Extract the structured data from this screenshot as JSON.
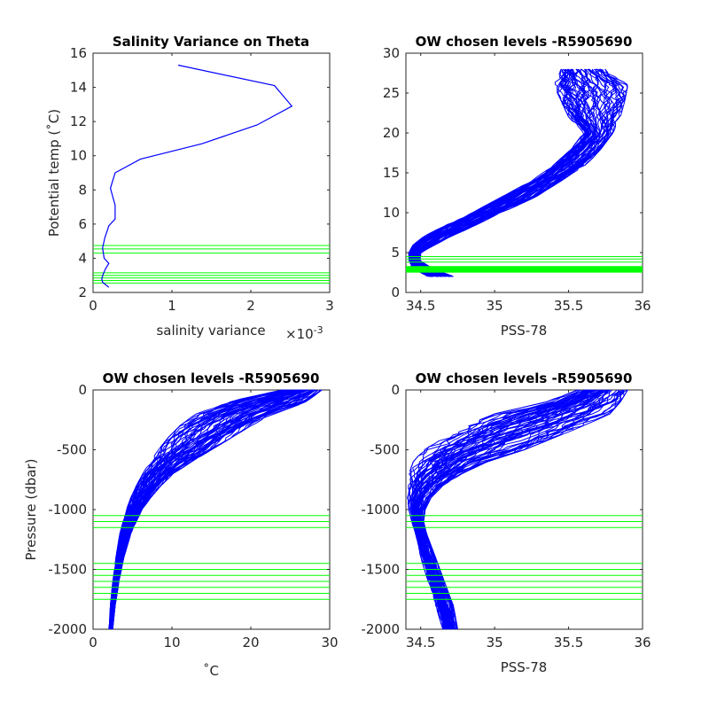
{
  "colors": {
    "profile": "#0000ff",
    "chosen_levels": "#00ff00",
    "axes": "#262626",
    "background": "#ffffff"
  },
  "chart_data": [
    {
      "type": "line",
      "title": "Salinity Variance on Theta",
      "xlabel": "salinity variance",
      "x_exponent": "×10",
      "x_exponent_power": "-3",
      "ylabel": "Potential temp (˚C)",
      "xlim": [
        0,
        0.003
      ],
      "ylim": [
        2,
        16
      ],
      "xticks": [
        0,
        0.001,
        0.002,
        0.003
      ],
      "xtick_labels": [
        "0",
        "1",
        "2",
        "3"
      ],
      "yticks": [
        2,
        4,
        6,
        8,
        10,
        12,
        14,
        16
      ],
      "ytick_labels": [
        "2",
        "4",
        "6",
        "8",
        "10",
        "12",
        "14",
        "16"
      ],
      "series": [
        {
          "x": [
            0.00108,
            0.0023,
            0.00252,
            0.00208,
            0.00138,
            0.0006,
            0.00028,
            0.00022,
            0.00028,
            0.00028,
            0.0002,
            0.00015,
            0.00012,
            0.00014,
            0.0002,
            0.00016,
            0.00013,
            0.00011,
            0.00012,
            0.0002
          ],
          "y": [
            15.3,
            14.1,
            12.9,
            11.8,
            10.7,
            9.8,
            9.0,
            8.1,
            7.1,
            6.3,
            5.9,
            5.2,
            4.6,
            4.0,
            3.7,
            3.4,
            3.1,
            2.8,
            2.6,
            2.3
          ]
        }
      ],
      "hlines": [
        4.75,
        4.55,
        4.3,
        3.15,
        3.0,
        2.85,
        2.7,
        2.55
      ]
    },
    {
      "type": "line",
      "title": "OW chosen levels -R5905690",
      "xlabel": "PSS-78",
      "ylabel": "",
      "xlim": [
        34.4,
        36
      ],
      "ylim": [
        0,
        30
      ],
      "xticks": [
        34.5,
        35,
        35.5,
        36
      ],
      "xtick_labels": [
        "34.5",
        "35",
        "35.5",
        "36"
      ],
      "yticks": [
        0,
        5,
        10,
        15,
        20,
        25,
        30
      ],
      "ytick_labels": [
        "0",
        "5",
        "10",
        "15",
        "20",
        "25",
        "30"
      ],
      "profile_envelope": {
        "y": [
          2,
          3,
          4,
          5,
          6,
          7,
          8,
          10,
          12,
          14,
          16,
          18,
          20,
          22,
          24,
          26,
          28
        ],
        "x_min": [
          34.55,
          34.44,
          34.42,
          34.42,
          34.45,
          34.52,
          34.62,
          34.85,
          35.05,
          35.25,
          35.4,
          35.52,
          35.6,
          35.5,
          35.45,
          35.4,
          35.45
        ],
        "x_max": [
          34.72,
          34.58,
          34.5,
          34.5,
          34.6,
          34.7,
          34.82,
          35.05,
          35.28,
          35.45,
          35.62,
          35.72,
          35.8,
          35.85,
          35.88,
          35.9,
          35.75
        ]
      },
      "hlines": [
        4.5,
        4.2,
        3.8,
        3.2,
        3.05,
        2.9,
        2.75,
        2.6
      ]
    },
    {
      "type": "line",
      "title": "OW chosen levels -R5905690",
      "xlabel": "˚C",
      "ylabel": "Pressure (dbar)",
      "xlim": [
        0,
        30
      ],
      "ylim": [
        -2000,
        0
      ],
      "xticks": [
        0,
        10,
        20,
        30
      ],
      "xtick_labels": [
        "0",
        "10",
        "20",
        "30"
      ],
      "yticks": [
        0,
        -500,
        -1000,
        -1500,
        -2000
      ],
      "ytick_labels": [
        "0",
        "-500",
        "-1000",
        "-1500",
        "-2000"
      ],
      "profile_envelope": {
        "y": [
          0,
          -100,
          -200,
          -300,
          -400,
          -500,
          -600,
          -700,
          -800,
          -900,
          -1000,
          -1200,
          -1400,
          -1600,
          -1800,
          -2000
        ],
        "x_min": [
          24,
          17,
          13,
          11,
          9.5,
          8.3,
          7.2,
          6.3,
          5.5,
          4.8,
          4.2,
          3.4,
          2.9,
          2.5,
          2.2,
          2.0
        ],
        "x_max": [
          29,
          27,
          23,
          20,
          17.5,
          15,
          12.5,
          10.2,
          8.6,
          7.3,
          6.2,
          4.8,
          3.9,
          3.3,
          2.8,
          2.5
        ]
      },
      "hlines": [
        -1050,
        -1100,
        -1150,
        -1450,
        -1500,
        -1550,
        -1600,
        -1650,
        -1700,
        -1750
      ]
    },
    {
      "type": "line",
      "title": "OW chosen levels -R5905690",
      "xlabel": "PSS-78",
      "ylabel": "",
      "xlim": [
        34.4,
        36
      ],
      "ylim": [
        -2000,
        0
      ],
      "xticks": [
        34.5,
        35,
        35.5,
        36
      ],
      "xtick_labels": [
        "34.5",
        "35",
        "35.5",
        "36"
      ],
      "yticks": [
        0,
        -500,
        -1000,
        -1500,
        -2000
      ],
      "ytick_labels": [
        "0",
        "-500",
        "-1000",
        "-1500",
        "-2000"
      ],
      "profile_envelope": {
        "y": [
          0,
          -100,
          -200,
          -300,
          -400,
          -500,
          -600,
          -700,
          -800,
          -900,
          -1000,
          -1100,
          -1200,
          -1400,
          -1600,
          -1800,
          -2000
        ],
        "x_min": [
          35.55,
          35.35,
          35.0,
          34.8,
          34.65,
          34.52,
          34.45,
          34.42,
          34.41,
          34.41,
          34.42,
          34.44,
          34.46,
          34.5,
          34.55,
          34.6,
          34.65
        ],
        "x_max": [
          35.9,
          35.85,
          35.78,
          35.6,
          35.4,
          35.2,
          34.95,
          34.78,
          34.65,
          34.57,
          34.53,
          34.52,
          34.54,
          34.6,
          34.66,
          34.72,
          34.75
        ]
      },
      "hlines": [
        -1050,
        -1100,
        -1150,
        -1450,
        -1500,
        -1550,
        -1600,
        -1650,
        -1700,
        -1750
      ]
    }
  ]
}
